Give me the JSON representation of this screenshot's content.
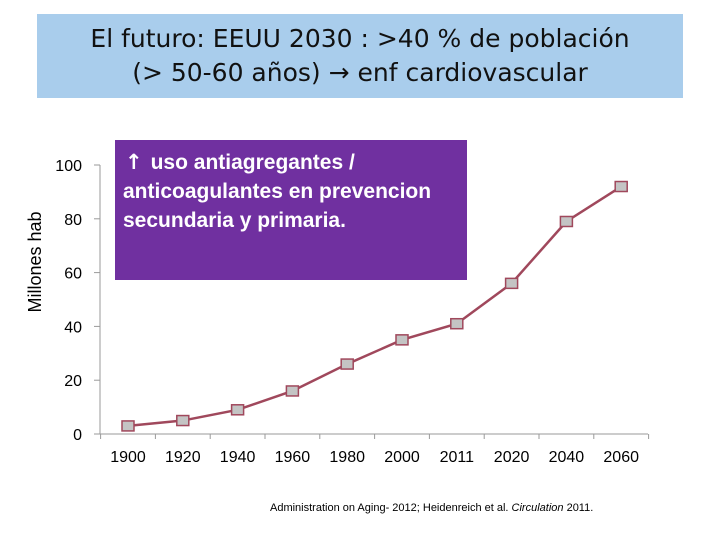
{
  "slide": {
    "title_line1": "El futuro: EEUU 2030 : >40 % de población",
    "title_line2_a": "(> 50-60 años)",
    "title_line2_arrow": "→",
    "title_line2_b": "enf cardiovascular",
    "title_bg_color": "#a9cdec"
  },
  "callout": {
    "arrow_icon": "arrow-up-icon",
    "arrow_glyph": "↑",
    "text": "uso antiagregantes / anticoagulantes en prevencion secundaria y primaria.",
    "bg_color": "#7030a0"
  },
  "source": {
    "text_a": "Administration on Aging- 2012; Heidenreich et al. ",
    "journal": "Circulation",
    "text_b": " 2011."
  },
  "chart_data": {
    "type": "line",
    "ylabel": "Millones hab",
    "xlabel": "",
    "categories": [
      "1900",
      "1920",
      "1940",
      "1960",
      "1980",
      "2000",
      "2011",
      "2020",
      "2040",
      "2060"
    ],
    "series": [
      {
        "values": [
          3,
          5,
          9,
          16,
          26,
          35,
          41,
          56,
          79,
          92
        ]
      }
    ],
    "ylim": [
      0,
      100
    ],
    "yticks": [
      "0",
      "20",
      "40",
      "60",
      "80",
      "100"
    ],
    "grid": false,
    "line_color": "#a0485c",
    "marker_color": "#c4c4c4"
  }
}
